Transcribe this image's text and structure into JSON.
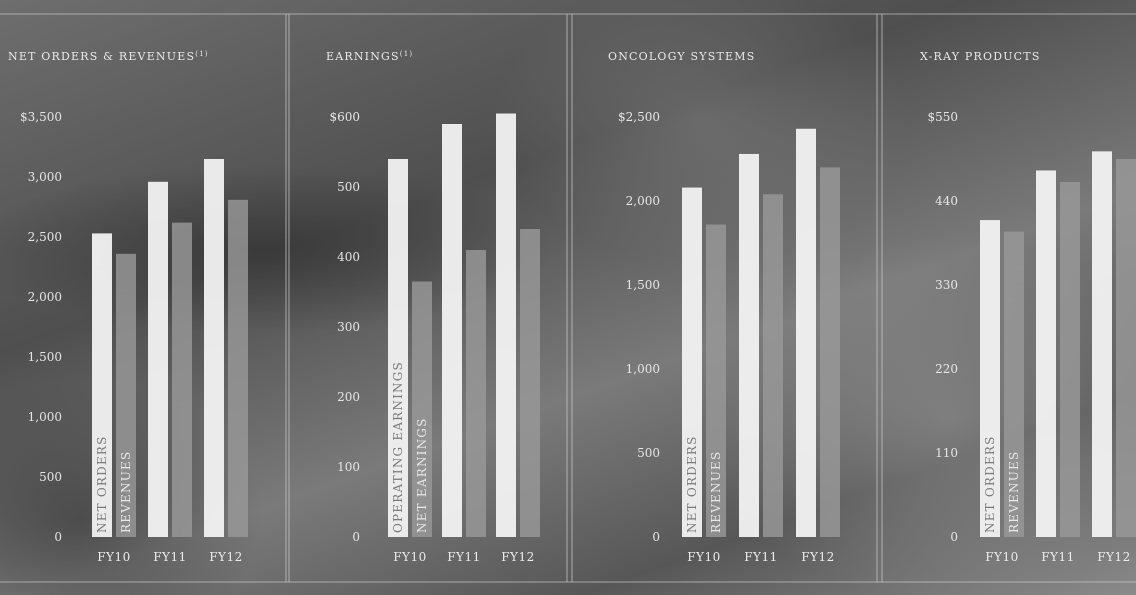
{
  "chart_data": [
    {
      "type": "bar",
      "title": "NET ORDERS & REVENUES",
      "title_sup": "(1)",
      "categories": [
        "FY10",
        "FY11",
        "FY12"
      ],
      "y_ticks": [
        "$3,500",
        "3,000",
        "2,500",
        "2,000",
        "1,500",
        "1,000",
        "500",
        "0"
      ],
      "ylim": [
        0,
        3500
      ],
      "series": [
        {
          "name": "NET ORDERS",
          "values": [
            2530,
            2960,
            3150
          ]
        },
        {
          "name": "REVENUES",
          "values": [
            2360,
            2620,
            2810
          ]
        }
      ]
    },
    {
      "type": "bar",
      "title": "EARNINGS",
      "title_sup": "(1)",
      "categories": [
        "FY10",
        "FY11",
        "FY12"
      ],
      "y_ticks": [
        "$600",
        "500",
        "400",
        "300",
        "200",
        "100",
        "0"
      ],
      "ylim": [
        0,
        600
      ],
      "series": [
        {
          "name": "OPERATING EARNINGS",
          "values": [
            540,
            590,
            605
          ]
        },
        {
          "name": "NET EARNINGS",
          "values": [
            365,
            410,
            440
          ]
        }
      ]
    },
    {
      "type": "bar",
      "title": "ONCOLOGY SYSTEMS",
      "title_sup": "",
      "categories": [
        "FY10",
        "FY11",
        "FY12"
      ],
      "y_ticks": [
        "$2,500",
        "2,000",
        "1,500",
        "1,000",
        "500",
        "0"
      ],
      "ylim": [
        0,
        2500
      ],
      "series": [
        {
          "name": "NET ORDERS",
          "values": [
            2080,
            2280,
            2430
          ]
        },
        {
          "name": "REVENUES",
          "values": [
            1860,
            2040,
            2200
          ]
        }
      ]
    },
    {
      "type": "bar",
      "title": "X-RAY PRODUCTS",
      "title_sup": "",
      "categories": [
        "FY10",
        "FY11",
        "FY12"
      ],
      "y_ticks": [
        "$550",
        "440",
        "330",
        "220",
        "110",
        "0"
      ],
      "ylim": [
        0,
        550
      ],
      "series": [
        {
          "name": "NET ORDERS",
          "values": [
            415,
            480,
            505
          ]
        },
        {
          "name": "REVENUES",
          "values": [
            400,
            465,
            495
          ]
        }
      ]
    }
  ],
  "colors": {
    "primary_bar": "#f2f2f2",
    "secondary_bar": "#9a9a9a",
    "divider": "#c9c9c9",
    "label_on_primary": "#7a7a7a",
    "label_on_secondary": "#e8e8e8"
  }
}
